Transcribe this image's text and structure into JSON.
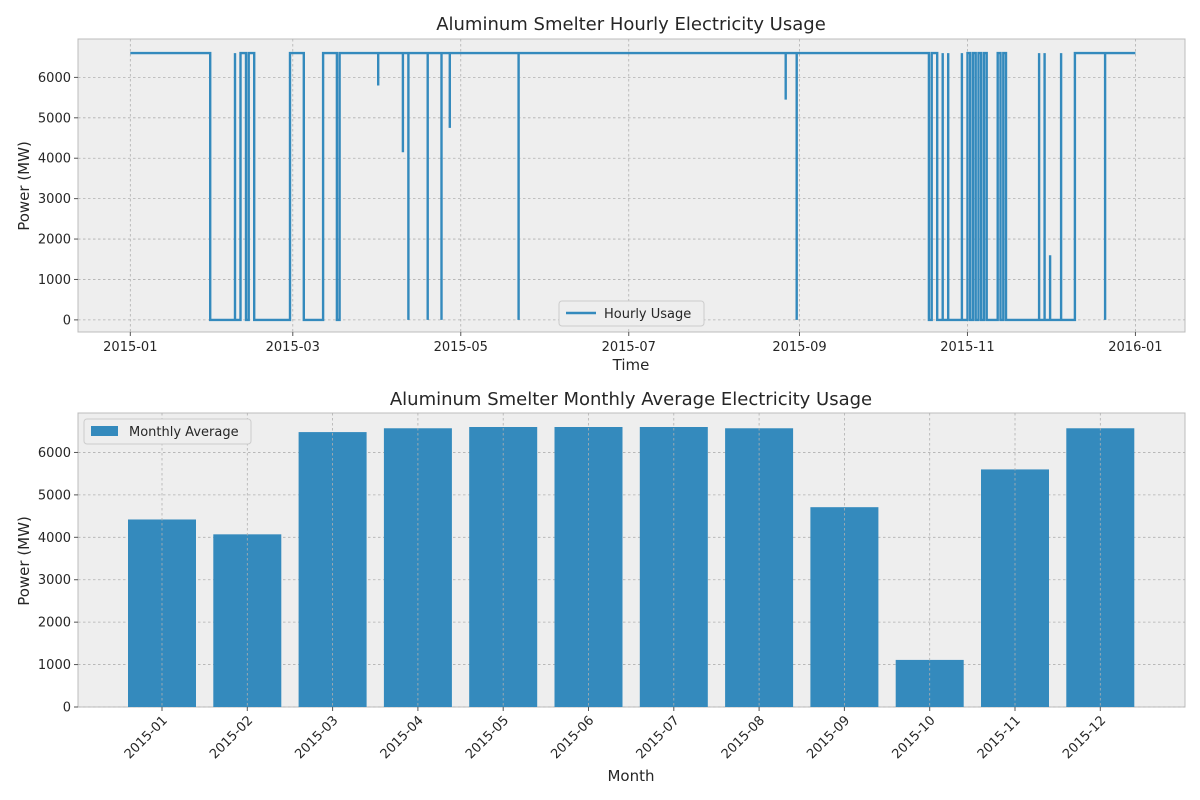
{
  "chart_data": [
    {
      "type": "line",
      "title": "Aluminum Smelter Hourly Electricity Usage",
      "xlabel": "Time",
      "ylabel": "Power (MW)",
      "xlim": [
        "2014-12-13",
        "2016-01-19"
      ],
      "ylim": [
        -300,
        6950
      ],
      "xticks": [
        "2015-01",
        "2015-03",
        "2015-05",
        "2015-07",
        "2015-09",
        "2015-11",
        "2016-01"
      ],
      "yticks": [
        0,
        1000,
        2000,
        3000,
        4000,
        5000,
        6000
      ],
      "grid": true,
      "legend_position": "bottom-center",
      "series": [
        {
          "name": "Hourly Usage",
          "color": "#348abd",
          "points": [
            [
              "2015-01-01",
              6600
            ],
            [
              "2015-01-30",
              6600
            ],
            [
              "2015-01-30",
              0
            ],
            [
              "2015-02-08",
              0
            ],
            [
              "2015-02-08",
              6600
            ],
            [
              "2015-02-08",
              0
            ],
            [
              "2015-02-10",
              0
            ],
            [
              "2015-02-10",
              6600
            ],
            [
              "2015-02-12",
              6600
            ],
            [
              "2015-02-12",
              0
            ],
            [
              "2015-02-13",
              0
            ],
            [
              "2015-02-13",
              6600
            ],
            [
              "2015-02-15",
              6600
            ],
            [
              "2015-02-15",
              0
            ],
            [
              "2015-02-28",
              0
            ],
            [
              "2015-02-28",
              6600
            ],
            [
              "2015-03-05",
              6600
            ],
            [
              "2015-03-05",
              0
            ],
            [
              "2015-03-12",
              0
            ],
            [
              "2015-03-12",
              6600
            ],
            [
              "2015-03-17",
              6600
            ],
            [
              "2015-03-17",
              0
            ],
            [
              "2015-03-18",
              0
            ],
            [
              "2015-03-18",
              6600
            ],
            [
              "2015-04-01",
              6600
            ],
            [
              "2015-04-01",
              5800
            ],
            [
              "2015-04-01",
              6600
            ],
            [
              "2015-04-10",
              6600
            ],
            [
              "2015-04-10",
              4150
            ],
            [
              "2015-04-10",
              6600
            ],
            [
              "2015-04-12",
              6600
            ],
            [
              "2015-04-12",
              0
            ],
            [
              "2015-04-12",
              6600
            ],
            [
              "2015-04-19",
              6600
            ],
            [
              "2015-04-19",
              0
            ],
            [
              "2015-04-19",
              6600
            ],
            [
              "2015-04-24",
              6600
            ],
            [
              "2015-04-24",
              0
            ],
            [
              "2015-04-24",
              6600
            ],
            [
              "2015-04-27",
              6600
            ],
            [
              "2015-04-27",
              4750
            ],
            [
              "2015-04-27",
              6600
            ],
            [
              "2015-05-22",
              6600
            ],
            [
              "2015-05-22",
              0
            ],
            [
              "2015-05-22",
              6600
            ],
            [
              "2015-08-27",
              6600
            ],
            [
              "2015-08-27",
              5450
            ],
            [
              "2015-08-27",
              6600
            ],
            [
              "2015-08-31",
              6600
            ],
            [
              "2015-08-31",
              0
            ],
            [
              "2015-08-31",
              6600
            ],
            [
              "2015-10-18",
              6600
            ],
            [
              "2015-10-18",
              0
            ],
            [
              "2015-10-19",
              0
            ],
            [
              "2015-10-19",
              6600
            ],
            [
              "2015-10-21",
              6600
            ],
            [
              "2015-10-21",
              0
            ],
            [
              "2015-10-23",
              0
            ],
            [
              "2015-10-23",
              6600
            ],
            [
              "2015-10-23",
              0
            ],
            [
              "2015-10-25",
              0
            ],
            [
              "2015-10-25",
              6600
            ],
            [
              "2015-10-25",
              0
            ],
            [
              "2015-10-30",
              0
            ],
            [
              "2015-10-30",
              6600
            ],
            [
              "2015-10-30",
              0
            ],
            [
              "2015-11-01",
              0
            ],
            [
              "2015-11-01",
              6600
            ],
            [
              "2015-11-02",
              6600
            ],
            [
              "2015-11-02",
              0
            ],
            [
              "2015-11-03",
              0
            ],
            [
              "2015-11-03",
              6600
            ],
            [
              "2015-11-04",
              6600
            ],
            [
              "2015-11-04",
              0
            ],
            [
              "2015-11-05",
              0
            ],
            [
              "2015-11-05",
              6600
            ],
            [
              "2015-11-06",
              6600
            ],
            [
              "2015-11-06",
              0
            ],
            [
              "2015-11-07",
              0
            ],
            [
              "2015-11-07",
              2300
            ],
            [
              "2015-11-07",
              6600
            ],
            [
              "2015-11-08",
              6600
            ],
            [
              "2015-11-08",
              0
            ],
            [
              "2015-11-12",
              0
            ],
            [
              "2015-11-12",
              6600
            ],
            [
              "2015-11-13",
              6600
            ],
            [
              "2015-11-13",
              0
            ],
            [
              "2015-11-14",
              0
            ],
            [
              "2015-11-14",
              6600
            ],
            [
              "2015-11-15",
              6600
            ],
            [
              "2015-11-15",
              0
            ],
            [
              "2015-11-27",
              0
            ],
            [
              "2015-11-27",
              6600
            ],
            [
              "2015-11-27",
              0
            ],
            [
              "2015-11-29",
              0
            ],
            [
              "2015-11-29",
              6600
            ],
            [
              "2015-11-29",
              0
            ],
            [
              "2015-12-01",
              0
            ],
            [
              "2015-12-01",
              1600
            ],
            [
              "2015-12-01",
              0
            ],
            [
              "2015-12-05",
              0
            ],
            [
              "2015-12-05",
              6600
            ],
            [
              "2015-12-05",
              0
            ],
            [
              "2015-12-10",
              0
            ],
            [
              "2015-12-10",
              6600
            ],
            [
              "2015-12-10",
              6600
            ],
            [
              "2015-12-21",
              6600
            ],
            [
              "2015-12-21",
              0
            ],
            [
              "2015-12-21",
              6600
            ],
            [
              "2016-01-01",
              6600
            ]
          ]
        }
      ]
    },
    {
      "type": "bar",
      "title": "Aluminum Smelter Monthly Average Electricity Usage",
      "xlabel": "Month",
      "ylabel": "Power (MW)",
      "ylim": [
        0,
        6930
      ],
      "yticks": [
        0,
        1000,
        2000,
        3000,
        4000,
        5000,
        6000
      ],
      "grid": true,
      "legend_position": "top-left",
      "categories": [
        "2015-01",
        "2015-02",
        "2015-03",
        "2015-04",
        "2015-05",
        "2015-06",
        "2015-07",
        "2015-08",
        "2015-09",
        "2015-10",
        "2015-11",
        "2015-12"
      ],
      "series": [
        {
          "name": "Monthly Average",
          "color": "#348abd",
          "values": [
            4420,
            4070,
            6480,
            6570,
            6600,
            6600,
            6600,
            6570,
            4710,
            1110,
            5600,
            6570
          ]
        }
      ]
    }
  ]
}
